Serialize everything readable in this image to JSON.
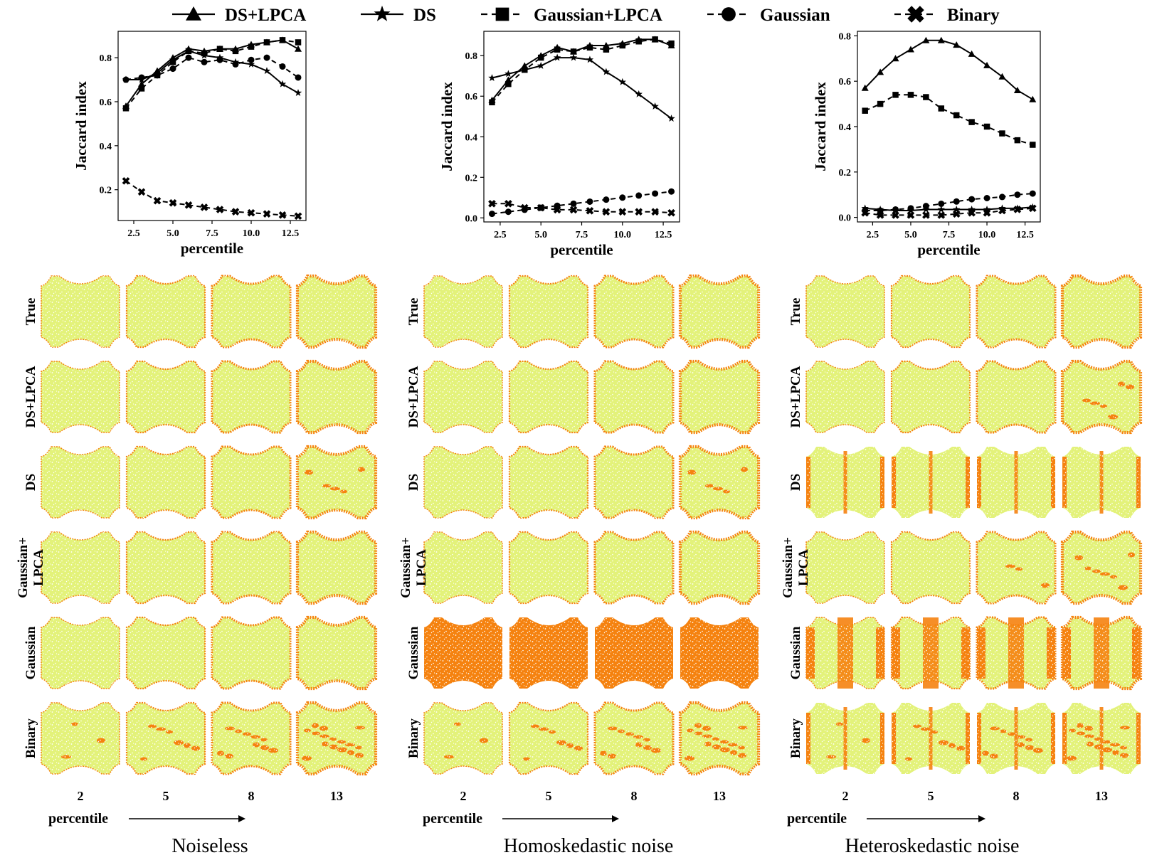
{
  "legend": [
    {
      "label": "DS+LPCA",
      "marker": "triangle",
      "dash": "solid"
    },
    {
      "label": "DS",
      "marker": "star",
      "dash": "solid"
    },
    {
      "label": "Gaussian+LPCA",
      "marker": "square",
      "dash": "dashed"
    },
    {
      "label": "Gaussian",
      "marker": "circle",
      "dash": "dashed"
    },
    {
      "label": "Binary",
      "marker": "x",
      "dash": "dashed"
    }
  ],
  "colors": {
    "line": "#000000",
    "inlier": "#e3f27a",
    "boundary": "#f5820f",
    "background": "#ffffff"
  },
  "chart_data": [
    {
      "type": "line",
      "panel": "Noiseless",
      "xlabel": "percentile",
      "ylabel": "Jaccard index",
      "xlim": [
        1.5,
        13.5
      ],
      "ylim": [
        0.06,
        0.92
      ],
      "xticks": [
        2.5,
        5.0,
        7.5,
        10.0,
        12.5
      ],
      "xtick_labels": [
        "2.5",
        "5.0",
        "7.5",
        "10.0",
        "12.5"
      ],
      "yticks": [
        0.2,
        0.4,
        0.6,
        0.8
      ],
      "ytick_labels": [
        "0.2",
        "0.4",
        "0.6",
        "0.8"
      ],
      "x": [
        2,
        3,
        4,
        5,
        6,
        7,
        8,
        9,
        10,
        11,
        12,
        13
      ],
      "series": [
        {
          "name": "DS+LPCA",
          "values": [
            0.58,
            0.68,
            0.74,
            0.8,
            0.84,
            0.83,
            0.84,
            0.84,
            0.86,
            0.87,
            0.88,
            0.84
          ]
        },
        {
          "name": "DS",
          "values": [
            0.7,
            0.7,
            0.73,
            0.79,
            0.83,
            0.81,
            0.8,
            0.78,
            0.77,
            0.74,
            0.68,
            0.64
          ]
        },
        {
          "name": "Gaussian+LPCA",
          "values": [
            0.57,
            0.66,
            0.72,
            0.78,
            0.83,
            0.82,
            0.84,
            0.83,
            0.85,
            0.87,
            0.88,
            0.87
          ]
        },
        {
          "name": "Gaussian",
          "values": [
            0.7,
            0.71,
            0.72,
            0.75,
            0.8,
            0.78,
            0.79,
            0.77,
            0.79,
            0.8,
            0.76,
            0.71
          ]
        },
        {
          "name": "Binary",
          "values": [
            0.24,
            0.19,
            0.15,
            0.14,
            0.13,
            0.12,
            0.11,
            0.1,
            0.095,
            0.09,
            0.085,
            0.08
          ]
        }
      ]
    },
    {
      "type": "line",
      "panel": "Homoskedastic noise",
      "xlabel": "percentile",
      "ylabel": "Jaccard index",
      "xlim": [
        1.5,
        13.5
      ],
      "ylim": [
        -0.02,
        0.92
      ],
      "xticks": [
        2.5,
        5.0,
        7.5,
        10.0,
        12.5
      ],
      "xtick_labels": [
        "2.5",
        "5.0",
        "7.5",
        "10.0",
        "12.5"
      ],
      "yticks": [
        0.0,
        0.2,
        0.4,
        0.6,
        0.8
      ],
      "ytick_labels": [
        "0.0",
        "0.2",
        "0.4",
        "0.6",
        "0.8"
      ],
      "x": [
        2,
        3,
        4,
        5,
        6,
        7,
        8,
        9,
        10,
        11,
        12,
        13
      ],
      "series": [
        {
          "name": "DS+LPCA",
          "values": [
            0.58,
            0.68,
            0.75,
            0.8,
            0.84,
            0.82,
            0.85,
            0.85,
            0.86,
            0.88,
            0.88,
            0.85
          ]
        },
        {
          "name": "DS",
          "values": [
            0.69,
            0.71,
            0.73,
            0.75,
            0.79,
            0.79,
            0.78,
            0.72,
            0.67,
            0.61,
            0.55,
            0.49
          ]
        },
        {
          "name": "Gaussian+LPCA",
          "values": [
            0.57,
            0.66,
            0.73,
            0.79,
            0.83,
            0.82,
            0.84,
            0.83,
            0.85,
            0.87,
            0.88,
            0.86
          ]
        },
        {
          "name": "Gaussian",
          "values": [
            0.02,
            0.03,
            0.04,
            0.05,
            0.06,
            0.07,
            0.08,
            0.09,
            0.1,
            0.11,
            0.12,
            0.13
          ]
        },
        {
          "name": "Binary",
          "values": [
            0.07,
            0.07,
            0.05,
            0.05,
            0.04,
            0.04,
            0.035,
            0.03,
            0.03,
            0.03,
            0.03,
            0.025
          ]
        }
      ]
    },
    {
      "type": "line",
      "panel": "Heteroskedastic noise",
      "xlabel": "percentile",
      "ylabel": "Jaccard index",
      "xlim": [
        1.5,
        13.5
      ],
      "ylim": [
        -0.02,
        0.82
      ],
      "xticks": [
        2.5,
        5.0,
        7.5,
        10.0,
        12.5
      ],
      "xtick_labels": [
        "2.5",
        "5.0",
        "7.5",
        "10.0",
        "12.5"
      ],
      "yticks": [
        0.0,
        0.2,
        0.4,
        0.6,
        0.8
      ],
      "ytick_labels": [
        "0.0",
        "0.2",
        "0.4",
        "0.6",
        "0.8"
      ],
      "x": [
        2,
        3,
        4,
        5,
        6,
        7,
        8,
        9,
        10,
        11,
        12,
        13
      ],
      "series": [
        {
          "name": "DS+LPCA",
          "values": [
            0.57,
            0.64,
            0.7,
            0.74,
            0.78,
            0.78,
            0.76,
            0.72,
            0.67,
            0.62,
            0.56,
            0.52
          ]
        },
        {
          "name": "DS",
          "values": [
            0.04,
            0.035,
            0.03,
            0.03,
            0.035,
            0.035,
            0.035,
            0.035,
            0.035,
            0.04,
            0.04,
            0.045
          ]
        },
        {
          "name": "Gaussian+LPCA",
          "values": [
            0.47,
            0.5,
            0.54,
            0.54,
            0.53,
            0.48,
            0.45,
            0.42,
            0.4,
            0.37,
            0.34,
            0.32
          ]
        },
        {
          "name": "Gaussian",
          "values": [
            0.03,
            0.03,
            0.035,
            0.04,
            0.05,
            0.06,
            0.07,
            0.08,
            0.085,
            0.09,
            0.1,
            0.105
          ]
        },
        {
          "name": "Binary",
          "values": [
            0.02,
            0.01,
            0.01,
            0.01,
            0.01,
            0.01,
            0.015,
            0.02,
            0.02,
            0.03,
            0.035,
            0.04
          ]
        }
      ]
    }
  ],
  "grid": {
    "rows": [
      "True",
      "DS+LPCA",
      "DS",
      "Gaussian+\nLPCA",
      "Gaussian",
      "Binary"
    ],
    "columns": [
      "2",
      "5",
      "8",
      "13"
    ],
    "axis_label": "percentile",
    "panels": [
      {
        "title": "Noiseless",
        "key": "noiseless"
      },
      {
        "title": "Homoskedastic noise",
        "key": "homo"
      },
      {
        "title": "Heteroskedastic noise",
        "key": "hetero"
      }
    ]
  }
}
